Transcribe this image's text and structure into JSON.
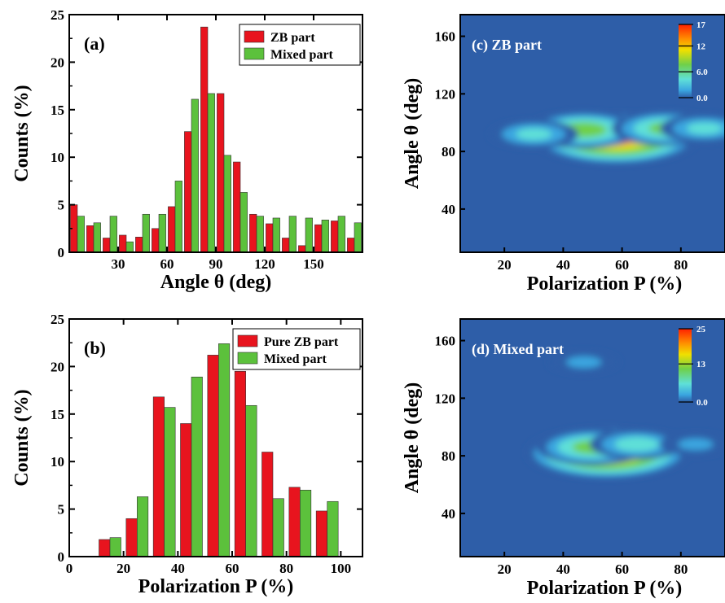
{
  "colors": {
    "red": "#e8141e",
    "green": "#5cc13c",
    "map_bg": "#2e5ea8",
    "map_colormap": [
      "#0a1a6e",
      "#2e5ea8",
      "#3aa6e0",
      "#5fe0d8",
      "#6fd04a",
      "#b8e030",
      "#f0e000",
      "#ff9000",
      "#ff2000"
    ]
  },
  "chart_data": [
    {
      "id": "a",
      "type": "bar",
      "panel_label": "(a)",
      "xlabel": "Angle θ (deg)",
      "ylabel": "Counts (%)",
      "xlim": [
        0,
        180
      ],
      "ylim": [
        0,
        25
      ],
      "xticks": [
        30,
        60,
        90,
        120,
        150
      ],
      "yticks": [
        0,
        5,
        10,
        15,
        20,
        25
      ],
      "bin_centers": [
        5,
        15,
        25,
        35,
        45,
        55,
        65,
        75,
        85,
        95,
        105,
        115,
        125,
        135,
        145,
        155,
        165,
        175
      ],
      "legend_position": "top-right",
      "series": [
        {
          "name": "ZB part",
          "color": "red",
          "values": [
            5.0,
            2.8,
            1.5,
            1.8,
            1.6,
            2.5,
            4.8,
            12.7,
            23.7,
            16.7,
            9.5,
            4.0,
            3.0,
            1.5,
            0.7,
            2.9,
            3.3,
            1.5
          ]
        },
        {
          "name": "Mixed part",
          "color": "green",
          "values": [
            3.8,
            3.1,
            3.8,
            1.1,
            4.0,
            4.0,
            7.5,
            16.1,
            16.7,
            10.2,
            6.3,
            3.8,
            3.6,
            3.8,
            3.6,
            3.4,
            3.8,
            3.1
          ]
        }
      ]
    },
    {
      "id": "b",
      "type": "bar",
      "panel_label": "(b)",
      "xlabel": "Polarization P (%)",
      "ylabel": "Counts (%)",
      "xlim": [
        0,
        108
      ],
      "ylim": [
        0,
        25
      ],
      "xticks": [
        0,
        20,
        40,
        60,
        80,
        100
      ],
      "yticks": [
        0,
        5,
        10,
        15,
        20,
        25
      ],
      "bin_centers": [
        15,
        25,
        35,
        45,
        55,
        65,
        75,
        85,
        95
      ],
      "legend_position": "top-right",
      "series": [
        {
          "name": "Pure ZB part",
          "color": "red",
          "values": [
            1.8,
            4.0,
            16.8,
            14.0,
            21.2,
            19.5,
            11.0,
            7.3,
            4.8
          ]
        },
        {
          "name": "Mixed part",
          "color": "green",
          "values": [
            2.0,
            6.3,
            15.7,
            18.9,
            22.4,
            15.9,
            6.1,
            7.0,
            5.8
          ]
        }
      ]
    },
    {
      "id": "c",
      "type": "heatmap",
      "panel_label": "(c) ZB part",
      "xlabel": "Polarization P (%)",
      "ylabel": "Angle θ (deg)",
      "xlim": [
        5,
        95
      ],
      "ylim": [
        10,
        175
      ],
      "xticks": [
        20,
        40,
        60,
        80
      ],
      "yticks": [
        40,
        80,
        120,
        160
      ],
      "colorbar": {
        "max": 17,
        "labels": [
          "17",
          "12",
          "6.0",
          "0.0"
        ],
        "values": [
          17,
          12,
          6,
          0
        ]
      },
      "peaks": [
        {
          "x": 58,
          "y": 89,
          "value": 17
        },
        {
          "x": 47,
          "y": 95,
          "value": 10
        },
        {
          "x": 75,
          "y": 96,
          "value": 9
        },
        {
          "x": 88,
          "y": 96,
          "value": 6
        },
        {
          "x": 30,
          "y": 92,
          "value": 6
        }
      ]
    },
    {
      "id": "d",
      "type": "heatmap",
      "panel_label": "(d) Mixed part",
      "xlabel": "Polarization P (%)",
      "ylabel": "Angle θ (deg)",
      "xlim": [
        5,
        95
      ],
      "ylim": [
        10,
        175
      ],
      "xticks": [
        20,
        40,
        60,
        80
      ],
      "yticks": [
        40,
        80,
        120,
        160
      ],
      "colorbar": {
        "max": 25,
        "labels": [
          "25",
          "13",
          "0.0"
        ],
        "values": [
          25,
          13,
          0
        ]
      },
      "peaks": [
        {
          "x": 55,
          "y": 82,
          "value": 25
        },
        {
          "x": 50,
          "y": 86,
          "value": 14
        },
        {
          "x": 65,
          "y": 88,
          "value": 10
        },
        {
          "x": 85,
          "y": 88,
          "value": 5
        },
        {
          "x": 47,
          "y": 145,
          "value": 5
        }
      ]
    }
  ]
}
